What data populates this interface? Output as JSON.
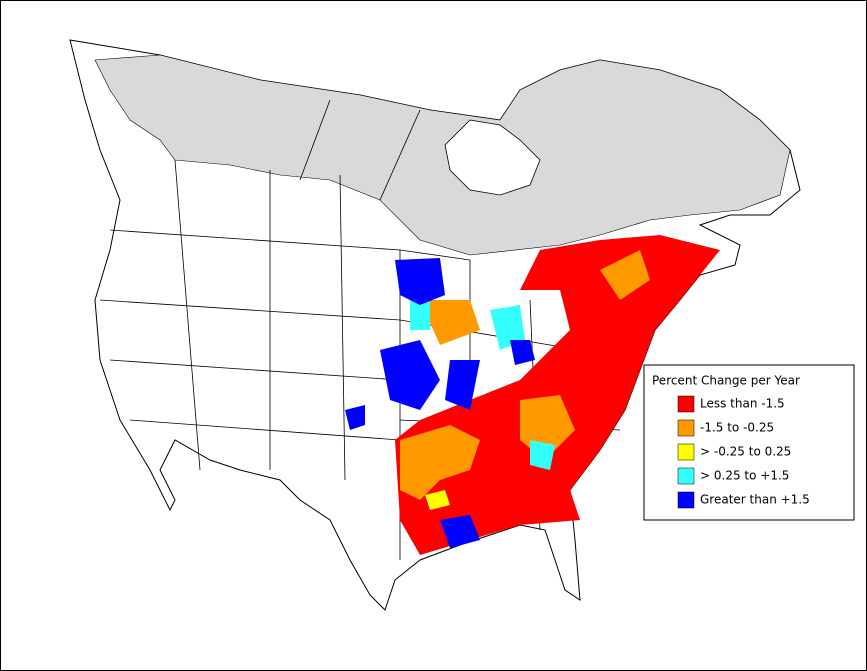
{
  "legend": {
    "title": "Percent Change per Year",
    "items": [
      {
        "label": "Less than -1.5",
        "color": "#ff0000"
      },
      {
        "label": "-1.5 to -0.25",
        "color": "#ff9900"
      },
      {
        "label": "> -0.25 to 0.25",
        "color": "#ffff00"
      },
      {
        "label": "> 0.25 to +1.5",
        "color": "#33ffff"
      },
      {
        "label": "Greater than +1.5",
        "color": "#0000ff"
      }
    ]
  }
}
